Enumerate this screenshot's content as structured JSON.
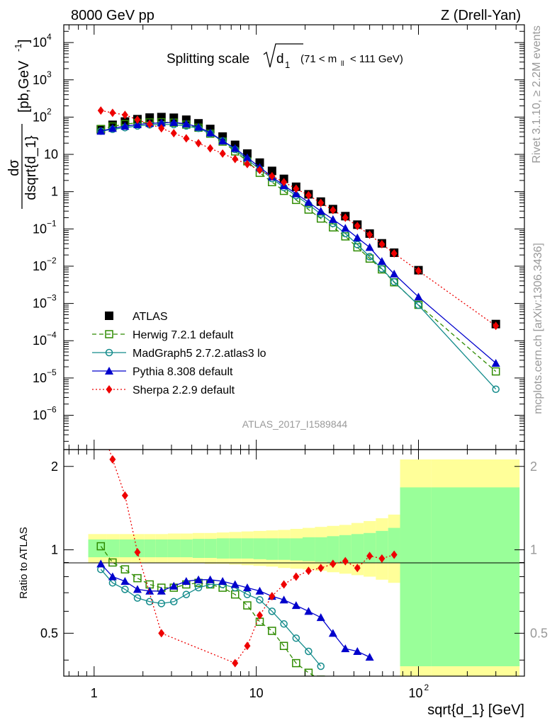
{
  "header": {
    "left": "8000 GeV pp",
    "right": "Z (Drell-Yan)"
  },
  "side_labels": {
    "top": "Rivet 3.1.10, ≥ 2.2M events",
    "bottom": "mcplots.cern.ch [arXiv:1306.3436]"
  },
  "colors": {
    "atlas": "#000000",
    "herwig": "#2e8b00",
    "madgraph": "#138b8b",
    "pythia": "#0000cc",
    "sherpa": "#ee0000",
    "band_outer": "#ffff99",
    "band_inner": "#99ff99"
  },
  "chart_data": [
    {
      "type": "scatter",
      "title_main": "Splitting scale",
      "title_sub": "d",
      "title_sub_index": "1",
      "title_cut": "(71 < m",
      "title_cut_sub": "ll",
      "title_cut_end": " < 111 GeV)",
      "analysis": "ATLAS_2017_I1589844",
      "ylabel_num": "dσ",
      "ylabel_den": "dsqrt{d_1}",
      "ylabel_unit": "[pb,GeV",
      "ylabel_unit_exp": "-1",
      "yscale": "log",
      "xscale": "log",
      "xlim": [
        0.65,
        450
      ],
      "ylim": [
        1.2e-07,
        30000.0
      ],
      "x_ticks": [
        "1",
        "10",
        "10^2"
      ],
      "y_ticks": [
        {
          "v": 10000,
          "base": "10",
          "exp": "4"
        },
        {
          "v": 1000,
          "base": "10",
          "exp": "3"
        },
        {
          "v": 100,
          "base": "10",
          "exp": "2"
        },
        {
          "v": 10,
          "base": "10",
          "exp": ""
        },
        {
          "v": 1,
          "base": "1",
          "exp": ""
        },
        {
          "v": 0.1,
          "base": "10",
          "exp": "−1"
        },
        {
          "v": 0.01,
          "base": "10",
          "exp": "−2"
        },
        {
          "v": 0.001,
          "base": "10",
          "exp": "−3"
        },
        {
          "v": 0.0001,
          "base": "10",
          "exp": "−4"
        },
        {
          "v": 1e-05,
          "base": "10",
          "exp": "−5"
        },
        {
          "v": 1e-06,
          "base": "10",
          "exp": "−6"
        }
      ],
      "x": [
        1.1,
        1.3,
        1.55,
        1.85,
        2.2,
        2.6,
        3.1,
        3.7,
        4.4,
        5.2,
        6.2,
        7.4,
        8.8,
        10.5,
        12.5,
        14.8,
        17.6,
        21,
        25,
        29.7,
        35.4,
        42,
        50,
        59.5,
        70.8,
        100,
        300
      ],
      "series": [
        {
          "name": "ATLAS",
          "marker": "square",
          "values": [
            47,
            62,
            76,
            88,
            97,
            100,
            96,
            85,
            68,
            48,
            30,
            18,
            10.5,
            6,
            3.6,
            2.2,
            1.35,
            0.85,
            0.54,
            0.34,
            0.22,
            0.13,
            0.075,
            0.041,
            0.023,
            0.0078,
            0.00028
          ]
        },
        {
          "name": "Herwig 7.2.1 default",
          "marker": "open-square",
          "line": "dashed",
          "values": [
            48,
            56,
            65,
            70,
            72,
            73,
            71,
            63,
            52,
            36,
            22,
            12,
            6.5,
            3.2,
            1.8,
            1.05,
            0.6,
            0.33,
            0.19,
            0.11,
            0.063,
            0.032,
            0.016,
            0.0082,
            0.0037,
            0.00092,
            1.5e-05
          ]
        },
        {
          "name": "MadGraph5 2.7.2.atlas3 lo",
          "marker": "open-circle",
          "line": "solid",
          "values": [
            42,
            47,
            52,
            58,
            62,
            64,
            63,
            58,
            50,
            36,
            23,
            13.5,
            7.2,
            4,
            2.25,
            1.3,
            0.78,
            0.45,
            0.25,
            0.14,
            0.075,
            0.038,
            0.018,
            0.0085,
            0.0038,
            0.0009,
            5e-06
          ]
        },
        {
          "name": "Pythia 8.308 default",
          "marker": "triangle",
          "line": "solid",
          "values": [
            42,
            50,
            57,
            63,
            68,
            70,
            72,
            66,
            54,
            38,
            23,
            14.5,
            8.2,
            4.5,
            2.5,
            1.45,
            0.88,
            0.52,
            0.3,
            0.18,
            0.105,
            0.058,
            0.032,
            0.0135,
            0.0062,
            0.0015,
            2.5e-05
          ]
        },
        {
          "name": "Sherpa 2.2.9 default",
          "marker": "diamond",
          "line": "dotted",
          "values": [
            150,
            130,
            115,
            85,
            65,
            50,
            37,
            27,
            20,
            14.5,
            10.5,
            7.5,
            5.5,
            3.8,
            2.6,
            1.8,
            1.2,
            0.8,
            0.5,
            0.32,
            0.2,
            0.12,
            0.07,
            0.039,
            0.022,
            0.0075,
            0.00025
          ]
        }
      ]
    },
    {
      "type": "line",
      "ylabel": "Ratio to ATLAS",
      "xlabel": "sqrt{d_1} [GeV]",
      "yscale": "log",
      "xscale": "log",
      "xlim": [
        0.65,
        450
      ],
      "ylim": [
        0.35,
        2.3
      ],
      "y_ticks": [
        {
          "v": 0.5,
          "label": "0.5"
        },
        {
          "v": 1,
          "label": "1"
        },
        {
          "v": 2,
          "label": "2"
        }
      ],
      "x_ticks": [
        "1",
        "10",
        "10^2"
      ],
      "reference": 1,
      "band_edges": [
        0.92,
        1.2,
        1.43,
        1.7,
        2.03,
        2.4,
        2.85,
        3.4,
        4.05,
        4.8,
        5.7,
        6.8,
        8.1,
        9.6,
        11.5,
        13.6,
        16.2,
        19.3,
        23,
        27.3,
        32.5,
        38.6,
        45.9,
        54.6,
        65,
        77,
        120,
        420
      ],
      "band_outer_hi": [
        1.14,
        1.14,
        1.14,
        1.14,
        1.14,
        1.14,
        1.145,
        1.145,
        1.15,
        1.15,
        1.155,
        1.16,
        1.165,
        1.17,
        1.175,
        1.18,
        1.19,
        1.2,
        1.21,
        1.22,
        1.23,
        1.25,
        1.27,
        1.3,
        1.34,
        2.12,
        2.12
      ],
      "band_outer_lo": [
        0.9,
        0.9,
        0.9,
        0.9,
        0.9,
        0.9,
        0.9,
        0.895,
        0.895,
        0.89,
        0.89,
        0.885,
        0.88,
        0.875,
        0.87,
        0.86,
        0.855,
        0.85,
        0.84,
        0.83,
        0.82,
        0.81,
        0.8,
        0.78,
        0.76,
        0.33,
        0.33
      ],
      "band_inner_hi": [
        1.09,
        1.09,
        1.09,
        1.09,
        1.09,
        1.09,
        1.09,
        1.09,
        1.095,
        1.095,
        1.1,
        1.1,
        1.1,
        1.1,
        1.1,
        1.1,
        1.1,
        1.11,
        1.11,
        1.12,
        1.13,
        1.14,
        1.15,
        1.17,
        1.2,
        1.68,
        1.68
      ],
      "band_inner_lo": [
        0.94,
        0.94,
        0.94,
        0.94,
        0.94,
        0.94,
        0.94,
        0.94,
        0.935,
        0.935,
        0.93,
        0.93,
        0.93,
        0.925,
        0.92,
        0.92,
        0.915,
        0.91,
        0.905,
        0.9,
        0.9,
        0.9,
        0.9,
        0.9,
        0.9,
        0.38,
        0.38
      ],
      "series": [
        {
          "name": "Herwig 7.2.1 default",
          "x": [
            1.1,
            1.3,
            1.55,
            1.85,
            2.2,
            2.6,
            3.1,
            3.7,
            4.4,
            5.2,
            6.2,
            7.4,
            8.8,
            10.5,
            12.5,
            14.8,
            17.6,
            21,
            25
          ],
          "values": [
            1.03,
            0.9,
            0.85,
            0.79,
            0.75,
            0.73,
            0.73,
            0.75,
            0.76,
            0.75,
            0.73,
            0.69,
            0.63,
            0.55,
            0.51,
            0.45,
            0.39,
            0.36,
            0.34
          ]
        },
        {
          "name": "MadGraph5 2.7.2.atlas3 lo",
          "x": [
            1.1,
            1.3,
            1.55,
            1.85,
            2.2,
            2.6,
            3.1,
            3.7,
            4.4,
            5.2,
            6.2,
            7.4,
            8.8,
            10.5,
            12.5,
            14.8,
            17.6,
            21,
            25
          ],
          "values": [
            0.85,
            0.76,
            0.72,
            0.67,
            0.65,
            0.64,
            0.65,
            0.69,
            0.73,
            0.75,
            0.75,
            0.73,
            0.69,
            0.66,
            0.6,
            0.54,
            0.48,
            0.43,
            0.38
          ]
        },
        {
          "name": "Pythia 8.308 default",
          "x": [
            1.1,
            1.3,
            1.55,
            1.85,
            2.2,
            2.6,
            3.1,
            3.7,
            4.4,
            5.2,
            6.2,
            7.4,
            8.8,
            10.5,
            12.5,
            14.8,
            17.6,
            21,
            25,
            29.7,
            35.4,
            42,
            50
          ],
          "values": [
            0.89,
            0.8,
            0.77,
            0.72,
            0.71,
            0.71,
            0.74,
            0.77,
            0.78,
            0.78,
            0.77,
            0.75,
            0.73,
            0.71,
            0.68,
            0.66,
            0.63,
            0.6,
            0.57,
            0.5,
            0.44,
            0.43,
            0.41
          ]
        },
        {
          "name": "Sherpa 2.2.9 default",
          "x": [
            1.3,
            1.55,
            1.85,
            2.6,
            7.4,
            8.8,
            10.5,
            12.5,
            14.8,
            17.6,
            21,
            25,
            29.7,
            35.4,
            42,
            50,
            59.5,
            70.8
          ],
          "values": [
            2.12,
            1.57,
            0.98,
            0.5,
            0.39,
            0.45,
            0.58,
            0.68,
            0.75,
            0.8,
            0.84,
            0.86,
            0.89,
            0.91,
            0.86,
            0.95,
            0.93,
            0.96
          ]
        }
      ]
    }
  ]
}
